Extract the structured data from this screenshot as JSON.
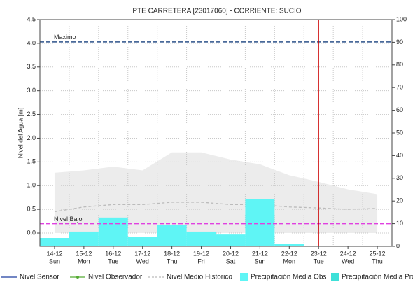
{
  "chart_data": {
    "type": "bar",
    "title": "PTE CARRETERA   [23017060] - CORRIENTE: SUCIO",
    "y_label": "Nivel del Agua [m]",
    "categories": [
      "14-12",
      "15-12",
      "16-12",
      "17-12",
      "18-12",
      "19-12",
      "20-12",
      "21-12",
      "22-12",
      "23-12",
      "24-12",
      "25-12"
    ],
    "day_labels": [
      "Sun",
      "Mon",
      "Tue",
      "Wed",
      "Thu",
      "Fri",
      "Sat",
      "Sun",
      "Mon",
      "Tue",
      "Wed",
      "Thu"
    ],
    "ylim": [
      -0.28,
      4.5
    ],
    "yticks": [
      {
        "value": 0,
        "label": "0.0"
      },
      0.5,
      {
        "value": 1,
        "label": "1.0"
      },
      1.5,
      {
        "value": 2,
        "label": "2.0"
      },
      2.5,
      {
        "value": 3,
        "label": "3.0"
      },
      3.5,
      {
        "value": 4,
        "label": "4.0"
      },
      4.5
    ],
    "y2lim": [
      0,
      100
    ],
    "y2ticks": [
      0,
      10,
      20,
      30,
      40,
      50,
      60,
      70,
      80,
      90,
      100
    ],
    "grid": true,
    "historic_range": {
      "color": "#ececec",
      "values": [
        1.27,
        1.32,
        1.4,
        1.32,
        1.7,
        1.7,
        1.55,
        1.45,
        1.22,
        1.08,
        0.92,
        0.82
      ]
    },
    "reference_lines": [
      {
        "label": "Maximo",
        "value": 4.03,
        "color": "#4a6a9a"
      },
      {
        "label": "Nivel Bajo",
        "value": 0.2,
        "color": "#e040e0"
      }
    ],
    "marker_x": "23-12",
    "marker_color": "#cc0000",
    "series": [
      {
        "name": "Nivel Sensor",
        "kind": "line",
        "color": "#1f3fa0",
        "values": [
          null,
          null,
          null,
          null,
          null,
          null,
          null,
          null,
          null,
          null,
          null,
          null
        ]
      },
      {
        "name": "Nivel Observador",
        "kind": "line",
        "color": "#55aa33",
        "values": [
          null,
          null,
          null,
          null,
          null,
          null,
          null,
          null,
          null,
          null,
          null,
          null
        ]
      },
      {
        "name": "Nivel Medio Historico",
        "kind": "dashed",
        "color": "#bbbbbb",
        "values": [
          0.45,
          0.55,
          0.6,
          0.6,
          0.65,
          0.65,
          0.6,
          0.6,
          0.55,
          0.53,
          0.5,
          0.52
        ]
      },
      {
        "name": "Precipitación Media Obs",
        "kind": "bar",
        "axis": "y2",
        "color": "#5ff5f5",
        "values": [
          3.7,
          6.5,
          12.7,
          4.3,
          9.3,
          6.5,
          5.2,
          20.7,
          1.2,
          null,
          null,
          null
        ]
      },
      {
        "name": "Precipitación Media Pro",
        "kind": "bar",
        "axis": "y2",
        "color": "#3ee0d8",
        "values": [
          null,
          null,
          null,
          null,
          null,
          null,
          null,
          null,
          null,
          null,
          null,
          null
        ]
      }
    ]
  }
}
